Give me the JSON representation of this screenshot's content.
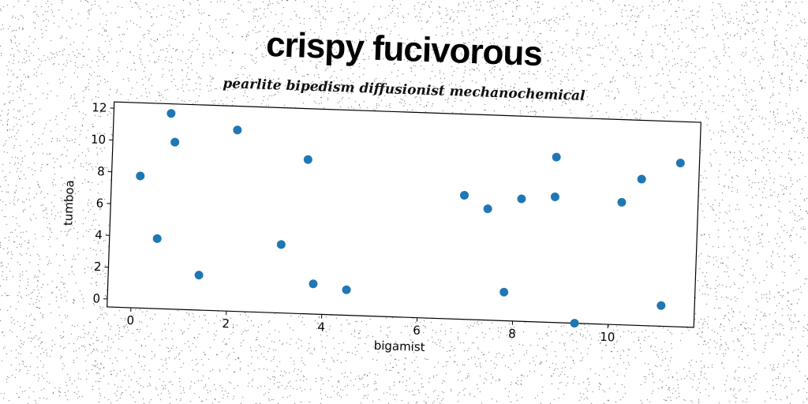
{
  "chart_data": {
    "type": "scatter",
    "title": "crispy fucivorous",
    "subtitle": "pearlite bipedism diffusionist mechanochemical",
    "xlabel": "bigamist",
    "ylabel": "tumboa",
    "xlim": [
      -0.5,
      11.8
    ],
    "ylim": [
      -0.5,
      12.4
    ],
    "xticks": [
      0,
      2,
      4,
      6,
      8,
      10
    ],
    "yticks": [
      0,
      2,
      4,
      6,
      8,
      10,
      12
    ],
    "grid": false,
    "marker_color": "#1f77b4",
    "points": [
      {
        "x": 0.1,
        "y": 7.8
      },
      {
        "x": 0.5,
        "y": 3.9
      },
      {
        "x": 0.7,
        "y": 11.8
      },
      {
        "x": 0.8,
        "y": 10.0
      },
      {
        "x": 1.4,
        "y": 1.7
      },
      {
        "x": 2.1,
        "y": 10.9
      },
      {
        "x": 3.1,
        "y": 3.8
      },
      {
        "x": 3.6,
        "y": 9.2
      },
      {
        "x": 3.8,
        "y": 1.4
      },
      {
        "x": 4.5,
        "y": 1.1
      },
      {
        "x": 6.9,
        "y": 7.3
      },
      {
        "x": 7.4,
        "y": 6.5
      },
      {
        "x": 7.8,
        "y": 1.3
      },
      {
        "x": 8.1,
        "y": 7.2
      },
      {
        "x": 8.8,
        "y": 7.4
      },
      {
        "x": 8.8,
        "y": 9.9
      },
      {
        "x": 9.3,
        "y": -0.5
      },
      {
        "x": 10.2,
        "y": 7.2
      },
      {
        "x": 10.6,
        "y": 8.7
      },
      {
        "x": 11.1,
        "y": 0.8
      },
      {
        "x": 11.4,
        "y": 9.8
      }
    ]
  }
}
